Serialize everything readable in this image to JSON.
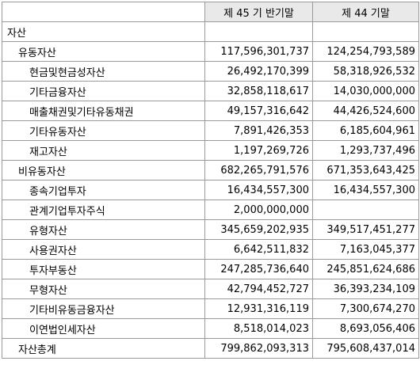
{
  "header": {
    "col_label": "",
    "col_current": "제 45 기 반기말",
    "col_previous": "제 44 기말"
  },
  "rows": [
    {
      "label": "자산",
      "level": 0,
      "current": "",
      "previous": ""
    },
    {
      "label": "유동자산",
      "level": 1,
      "current": "117,596,301,737",
      "previous": "124,254,793,589"
    },
    {
      "label": "현금및현금성자산",
      "level": 2,
      "current": "26,492,170,399",
      "previous": "58,318,926,532"
    },
    {
      "label": "기타금융자산",
      "level": 2,
      "current": "32,858,118,617",
      "previous": "14,030,000,000"
    },
    {
      "label": "매출채권및기타유동채권",
      "level": 2,
      "current": "49,157,316,642",
      "previous": "44,426,524,600"
    },
    {
      "label": "기타유동자산",
      "level": 2,
      "current": "7,891,426,353",
      "previous": "6,185,604,961"
    },
    {
      "label": "재고자산",
      "level": 2,
      "current": "1,197,269,726",
      "previous": "1,293,737,496"
    },
    {
      "label": "비유동자산",
      "level": 1,
      "current": "682,265,791,576",
      "previous": "671,353,643,425"
    },
    {
      "label": "종속기업투자",
      "level": 2,
      "current": "16,434,557,300",
      "previous": "16,434,557,300"
    },
    {
      "label": "관계기업투자주식",
      "level": 2,
      "current": "2,000,000,000",
      "previous": ""
    },
    {
      "label": "유형자산",
      "level": 2,
      "current": "345,659,202,935",
      "previous": "349,517,451,277"
    },
    {
      "label": "사용권자산",
      "level": 2,
      "current": "6,642,511,832",
      "previous": "7,163,045,377"
    },
    {
      "label": "투자부동산",
      "level": 2,
      "current": "247,285,736,640",
      "previous": "245,851,624,686"
    },
    {
      "label": "무형자산",
      "level": 2,
      "current": "42,794,452,727",
      "previous": "36,393,234,109"
    },
    {
      "label": "기타비유동금융자산",
      "level": 2,
      "current": "12,931,316,119",
      "previous": "7,300,674,270"
    },
    {
      "label": "이연법인세자산",
      "level": 2,
      "current": "8,518,014,023",
      "previous": "8,693,056,406"
    },
    {
      "label": "자산총계",
      "level": 1,
      "current": "799,862,093,313",
      "previous": "795,608,437,014"
    }
  ]
}
